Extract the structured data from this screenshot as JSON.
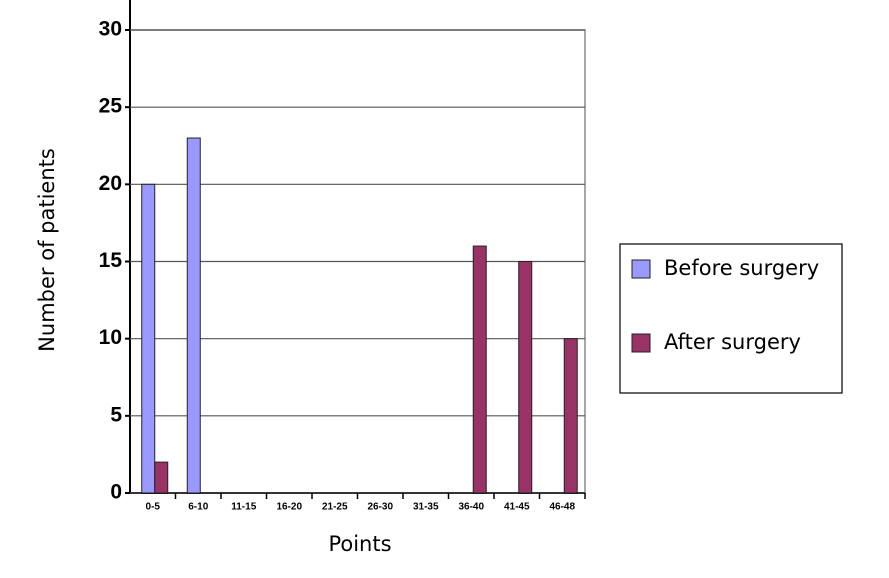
{
  "chart_data": {
    "type": "bar",
    "x_label": "Points",
    "y_label": "Number of patients",
    "categories": [
      "0-5",
      "6-10",
      "11-15",
      "16-20",
      "21-25",
      "26-30",
      "31-35",
      "36-40",
      "41-45",
      "46-48"
    ],
    "series": [
      {
        "name": "Before surgery",
        "color": "#9999ff",
        "values": [
          20,
          23,
          0,
          0,
          0,
          0,
          0,
          0,
          0,
          0
        ]
      },
      {
        "name": "After surgery",
        "color": "#993366",
        "values": [
          2,
          0,
          0,
          0,
          0,
          0,
          0,
          16,
          15,
          10
        ]
      }
    ],
    "ylim": [
      0,
      30
    ],
    "yticks": [
      0,
      5,
      10,
      15,
      20,
      25,
      30
    ],
    "grid": true,
    "legend": "right"
  }
}
